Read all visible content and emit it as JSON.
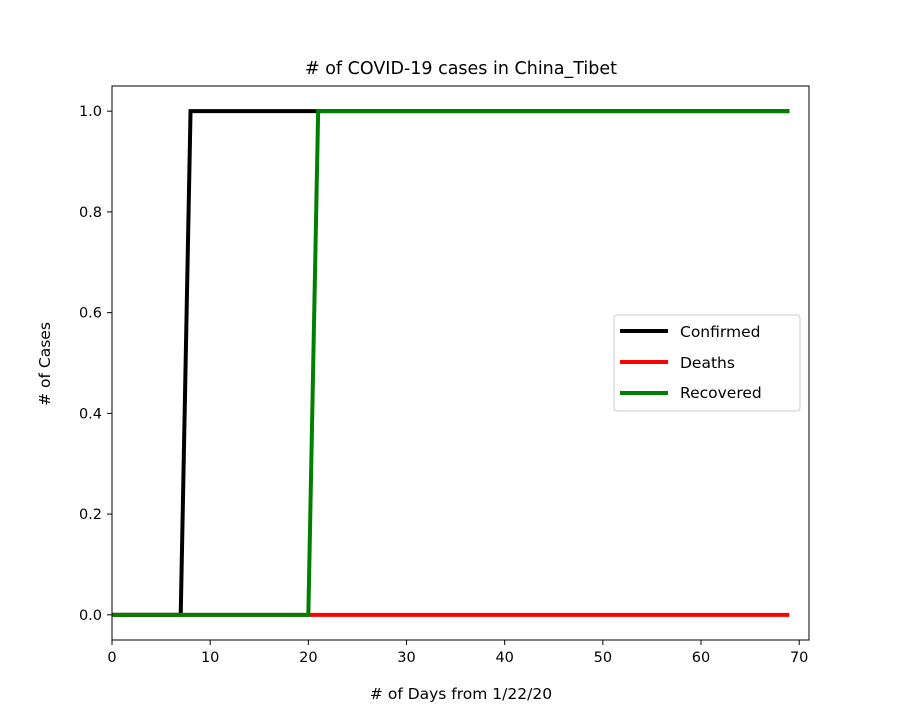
{
  "chart_data": {
    "type": "line",
    "title": "# of COVID-19 cases in China_Tibet",
    "xlabel": "# of Days from 1/22/20",
    "ylabel": "# of Cases",
    "xlim": [
      0,
      71
    ],
    "ylim": [
      -0.05,
      1.05
    ],
    "xticks": [
      0,
      10,
      20,
      30,
      40,
      50,
      60,
      70
    ],
    "yticks": [
      0.0,
      0.2,
      0.4,
      0.6,
      0.8,
      1.0
    ],
    "xtick_labels": [
      "0",
      "10",
      "20",
      "30",
      "40",
      "50",
      "60",
      "70"
    ],
    "ytick_labels": [
      "0.0",
      "0.2",
      "0.4",
      "0.6",
      "0.8",
      "1.0"
    ],
    "grid": false,
    "legend_position": "center-right",
    "series": [
      {
        "name": "Confirmed",
        "color": "#000000",
        "points": [
          [
            0,
            0
          ],
          [
            7,
            0
          ],
          [
            8,
            1
          ],
          [
            69,
            1
          ]
        ]
      },
      {
        "name": "Deaths",
        "color": "#ff0000",
        "points": [
          [
            0,
            0
          ],
          [
            69,
            0
          ]
        ]
      },
      {
        "name": "Recovered",
        "color": "#008000",
        "points": [
          [
            0,
            0
          ],
          [
            20,
            0
          ],
          [
            21,
            1
          ],
          [
            69,
            1
          ]
        ]
      }
    ]
  }
}
